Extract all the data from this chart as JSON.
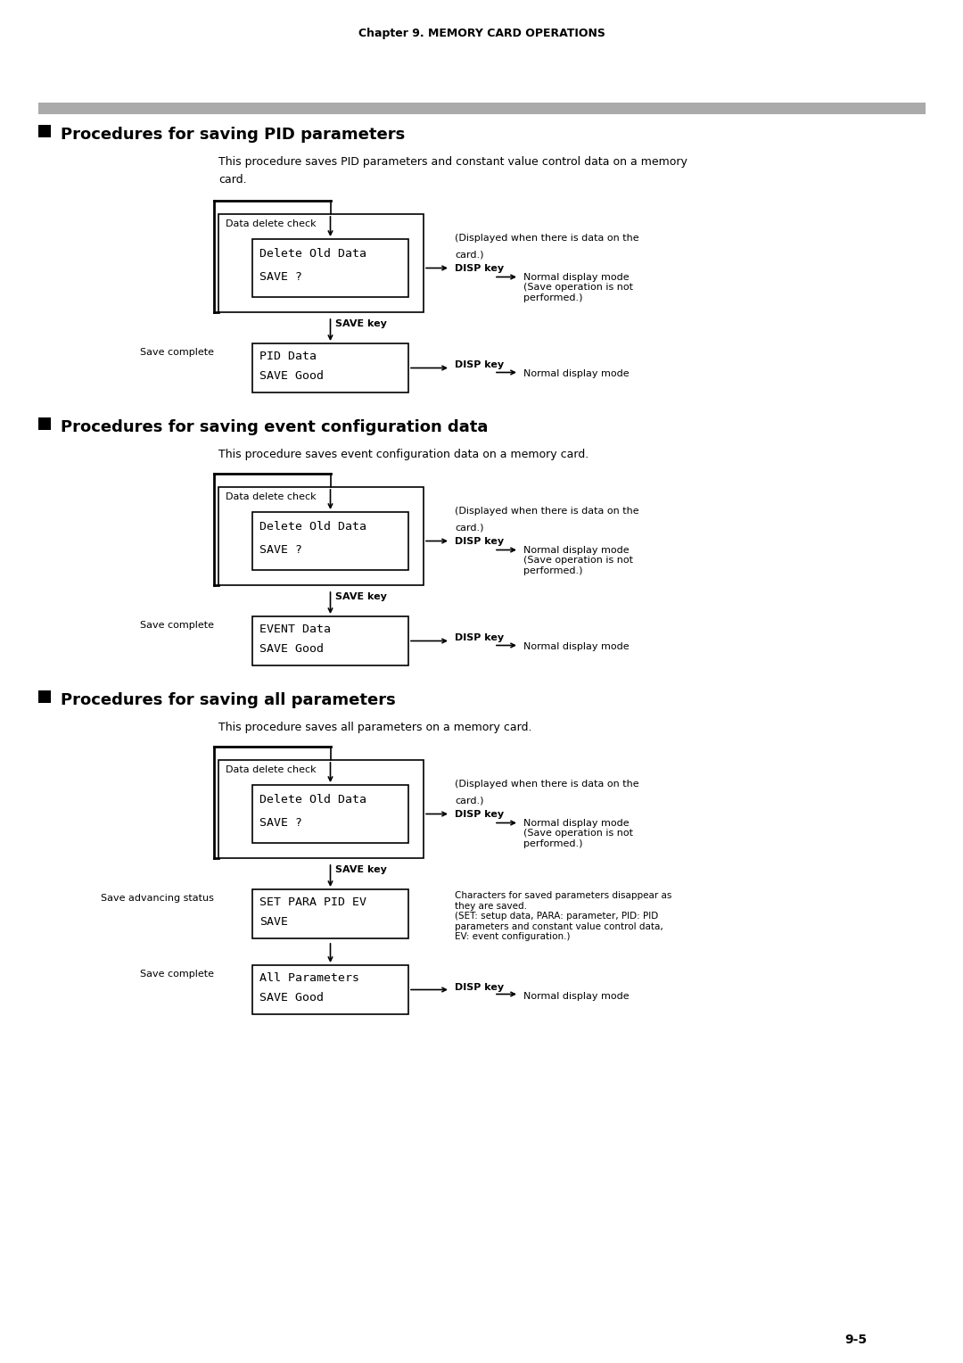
{
  "page_header": "Chapter 9. MEMORY CARD OPERATIONS",
  "page_number": "9-5",
  "background_color": "#ffffff",
  "gray_bar_color": "#aaaaaa",
  "sections": [
    {
      "title": "Procedures for saving PID parameters",
      "desc_line1": "This procedure saves PID parameters and constant value control data on a memory",
      "desc_line2": "card.",
      "box1_label": "Data delete check",
      "box1_line1": "Delete Old Data",
      "box1_line2": "SAVE ?",
      "save_key": "SAVE key",
      "right_note1": "(Displayed when there is data on the",
      "right_note2": "card.)",
      "right_note3": "DISP key",
      "right_arrow_text": "Normal display mode\n(Save operation is not\nperformed.)",
      "left_label2": "Save complete",
      "box2_line1": "PID Data",
      "box2_line2": "SAVE Good",
      "disp_key2": "DISP key",
      "right_arrow_text2": "Normal display mode",
      "has_mid_box": false
    },
    {
      "title": "Procedures for saving event configuration data",
      "desc_line1": "This procedure saves event configuration data on a memory card.",
      "desc_line2": "",
      "box1_label": "Data delete check",
      "box1_line1": "Delete Old Data",
      "box1_line2": "SAVE ?",
      "save_key": "SAVE key",
      "right_note1": "(Displayed when there is data on the",
      "right_note2": "card.)",
      "right_note3": "DISP key",
      "right_arrow_text": "Normal display mode\n(Save operation is not\nperformed.)",
      "left_label2": "Save complete",
      "box2_line1": "EVENT Data",
      "box2_line2": "SAVE Good",
      "disp_key2": "DISP key",
      "right_arrow_text2": "Normal display mode",
      "has_mid_box": false
    },
    {
      "title": "Procedures for saving all parameters",
      "desc_line1": "This procedure saves all parameters on a memory card.",
      "desc_line2": "",
      "box1_label": "Data delete check",
      "box1_line1": "Delete Old Data",
      "box1_line2": "SAVE ?",
      "save_key": "SAVE key",
      "right_note1": "(Displayed when there is data on the",
      "right_note2": "card.)",
      "right_note3": "DISP key",
      "right_arrow_text": "Normal display mode\n(Save operation is not\nperformed.)",
      "left_label_mid": "Save advancing status",
      "mid_line1": "SET PARA PID EV",
      "mid_line2": "SAVE",
      "mid_right_text": "Characters for saved parameters disappear as\nthey are saved.\n(SET: setup data, PARA: parameter, PID: PID\nparameters and constant value control data,\nEV: event configuration.)",
      "left_label2": "Save complete",
      "box2_line1": "All Parameters",
      "box2_line2": "SAVE Good",
      "disp_key2": "DISP key",
      "right_arrow_text2": "Normal display mode",
      "has_mid_box": true
    }
  ]
}
